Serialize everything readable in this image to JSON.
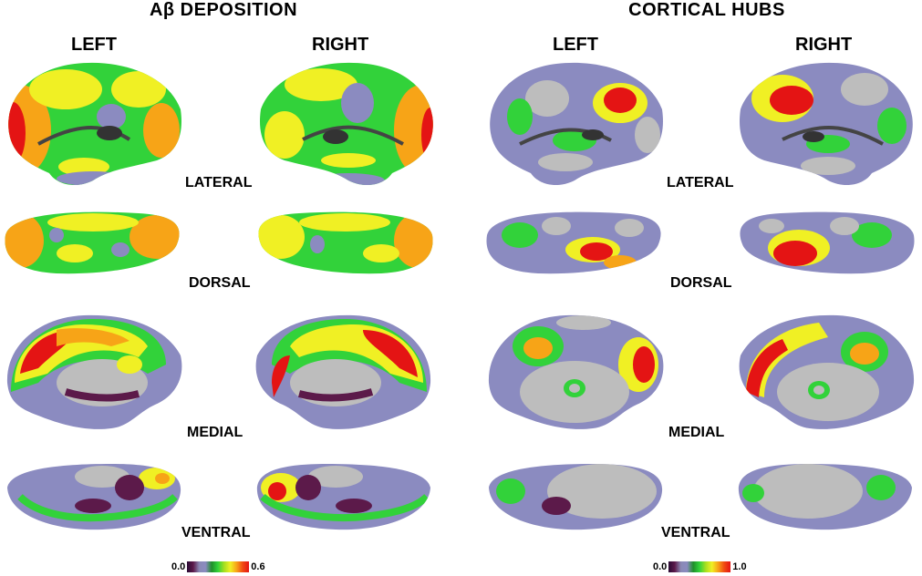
{
  "panels": [
    {
      "id": "ab",
      "title": "Aβ DEPOSITION",
      "left_label": "LEFT",
      "right_label": "RIGHT",
      "views": [
        "LATERAL",
        "DORSAL",
        "MEDIAL",
        "VENTRAL"
      ],
      "scale": {
        "min": "0.0",
        "max": "0.6"
      }
    },
    {
      "id": "hub",
      "title": "CORTICAL HUBS",
      "left_label": "LEFT",
      "right_label": "RIGHT",
      "views": [
        "LATERAL",
        "DORSAL",
        "MEDIAL",
        "VENTRAL"
      ],
      "scale": {
        "min": "0.0",
        "max": "1.0"
      }
    }
  ],
  "colors": {
    "low": "#2a0b35",
    "purple_gray": "#8b8bc0",
    "green": "#32d23a",
    "yellow": "#f0f024",
    "orange": "#f7a417",
    "red": "#e41414",
    "gray_surface": "#bdbdbd",
    "dark_maroon": "#5c1a4a"
  }
}
